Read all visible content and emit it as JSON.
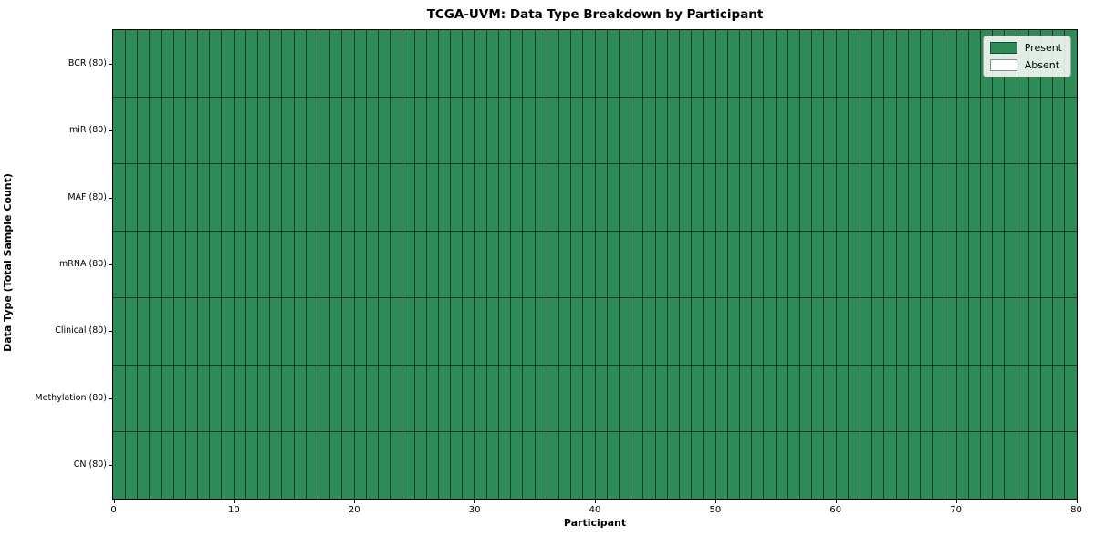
{
  "chart_data": {
    "type": "heatmap",
    "title": "TCGA-UVM: Data Type Breakdown by Participant",
    "xlabel": "Participant",
    "ylabel": "Data Type (Total Sample Count)",
    "x_range": [
      0,
      80
    ],
    "x_ticks": [
      0,
      10,
      20,
      30,
      40,
      50,
      60,
      70,
      80
    ],
    "n_participants": 80,
    "rows": [
      {
        "label": "BCR (80)",
        "data_type": "BCR",
        "total": 80,
        "present_count": 80
      },
      {
        "label": "miR (80)",
        "data_type": "miR",
        "total": 80,
        "present_count": 80
      },
      {
        "label": "MAF (80)",
        "data_type": "MAF",
        "total": 80,
        "present_count": 80
      },
      {
        "label": "mRNA (80)",
        "data_type": "mRNA",
        "total": 80,
        "present_count": 80
      },
      {
        "label": "Clinical (80)",
        "data_type": "Clinical",
        "total": 80,
        "present_count": 80
      },
      {
        "label": "Methylation (80)",
        "data_type": "Methylation",
        "total": 80,
        "present_count": 80
      },
      {
        "label": "CN (80)",
        "data_type": "CN",
        "total": 80,
        "present_count": 80
      }
    ],
    "legend": {
      "position": "upper right",
      "items": [
        {
          "label": "Present",
          "color": "#2e8b57"
        },
        {
          "label": "Absent",
          "color": "#ffffff"
        }
      ]
    },
    "colors": {
      "present": "#2e8b57",
      "absent": "#ffffff",
      "cell_edge": "rgba(0,0,0,0.55)",
      "spine": "#000000"
    },
    "grid": "cell-borders"
  }
}
